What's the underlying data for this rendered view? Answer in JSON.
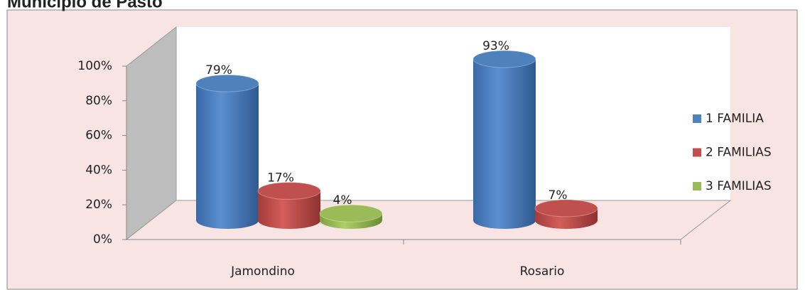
{
  "chart_data": {
    "type": "bar3d",
    "title": "Municipio de Pasto",
    "categories": [
      "Jamondino",
      "Rosario"
    ],
    "series": [
      {
        "name": "1 FAMILIA",
        "color": "#4f81bd",
        "values": [
          79,
          93
        ],
        "value_labels": [
          "79%",
          "93%"
        ]
      },
      {
        "name": "2 FAMILIAS",
        "color": "#c0504d",
        "values": [
          17,
          7
        ],
        "value_labels": [
          "17%",
          "7%"
        ]
      },
      {
        "name": "3 FAMILIAS",
        "color": "#9bbb59",
        "values": [
          4,
          null
        ],
        "value_labels": [
          "4%",
          null
        ]
      }
    ],
    "ylim": [
      0,
      100
    ],
    "yticks": [
      {
        "value": 0,
        "label": "0%"
      },
      {
        "value": 20,
        "label": "20%"
      },
      {
        "value": 40,
        "label": "40%"
      },
      {
        "value": 60,
        "label": "60%"
      },
      {
        "value": 80,
        "label": "80%"
      },
      {
        "value": 100,
        "label": "100%"
      }
    ],
    "legend": "right"
  }
}
